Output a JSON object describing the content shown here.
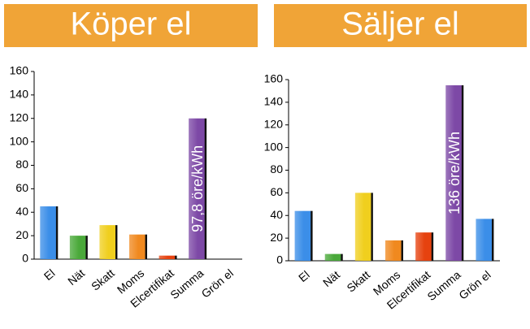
{
  "chart_data": [
    {
      "type": "bar",
      "title": "Köper el",
      "categories": [
        "El",
        "Nät",
        "Skatt",
        "Moms",
        "Elcertifikat",
        "Summa",
        "Grön el"
      ],
      "values": [
        45,
        20,
        29,
        21,
        3,
        120,
        0
      ],
      "colors": [
        "#3b8ee8",
        "#4aa93a",
        "#f0cf1e",
        "#f0891f",
        "#e6420f",
        "#7d49a6",
        "#3b8ee8"
      ],
      "ylim": [
        0,
        160
      ],
      "yticks": [
        0,
        20,
        40,
        60,
        80,
        100,
        120,
        140,
        160
      ],
      "annotation": "97,8 öre/kWh"
    },
    {
      "type": "bar",
      "title": "Säljer el",
      "categories": [
        "El",
        "Nät",
        "Skatt",
        "Moms",
        "Elcertifikat",
        "Summa",
        "Grön el"
      ],
      "values": [
        44,
        6,
        60,
        18,
        25,
        155,
        37
      ],
      "colors": [
        "#3b8ee8",
        "#4aa93a",
        "#f0cf1e",
        "#f0891f",
        "#e6420f",
        "#7d49a6",
        "#3b8ee8"
      ],
      "ylim": [
        0,
        160
      ],
      "yticks": [
        0,
        20,
        40,
        60,
        80,
        100,
        120,
        140,
        160
      ],
      "annotation": "136 öre/kWh"
    }
  ]
}
